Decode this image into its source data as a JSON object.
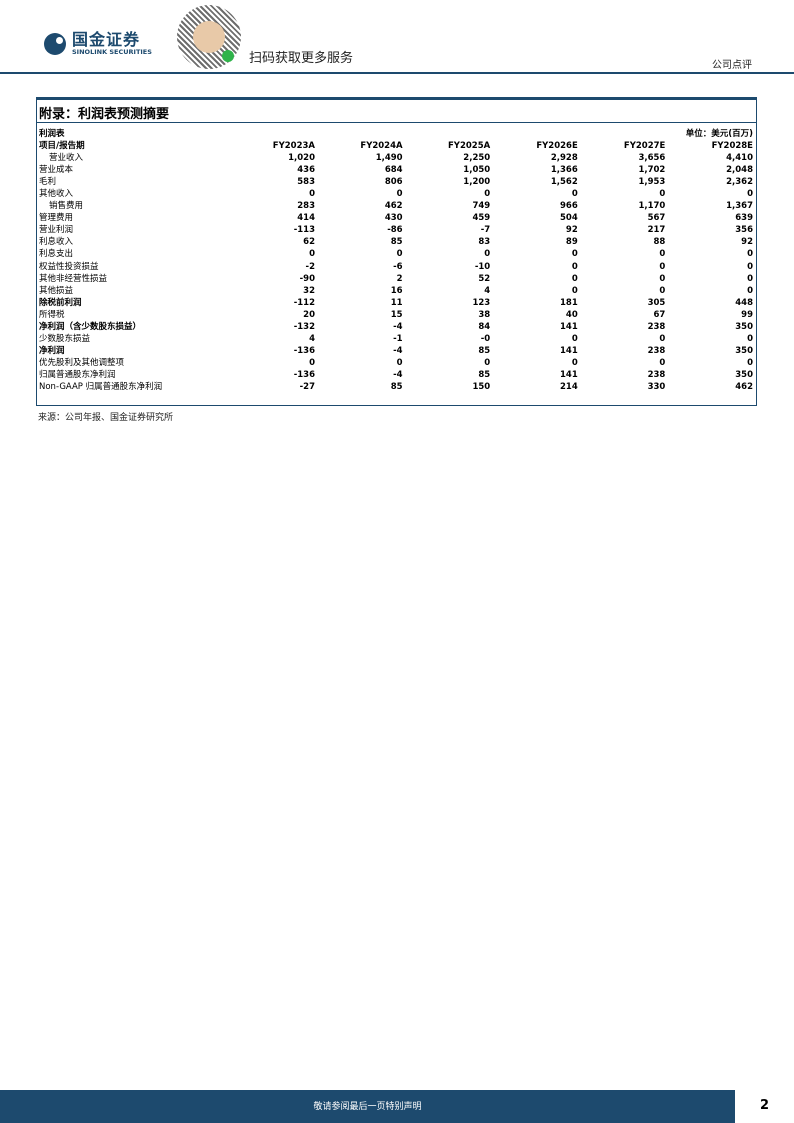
{
  "header": {
    "logo_cn": "国金证券",
    "logo_en": "SINOLINK SECURITIES",
    "scan_text": "扫码获取更多服务",
    "doc_type": "公司点评"
  },
  "section": {
    "title": "附录：利润表预测摘要"
  },
  "table": {
    "name": "利润表",
    "unit": "单位：美元(百万)",
    "header": [
      "项目/报告期",
      "FY2023A",
      "FY2024A",
      "FY2025A",
      "FY2026E",
      "FY2027E",
      "FY2028E"
    ],
    "rows": [
      {
        "label": "营业收入",
        "values": [
          "1,020",
          "1,490",
          "2,250",
          "2,928",
          "3,656",
          "4,410"
        ]
      },
      {
        "label": "营业成本",
        "values": [
          "436",
          "684",
          "1,050",
          "1,366",
          "1,702",
          "2,048"
        ]
      },
      {
        "label": "毛利",
        "values": [
          "583",
          "806",
          "1,200",
          "1,562",
          "1,953",
          "2,362"
        ]
      },
      {
        "label": "其他收入",
        "values": [
          "0",
          "0",
          "0",
          "0",
          "0",
          "0"
        ]
      },
      {
        "label": "销售费用",
        "values": [
          "283",
          "462",
          "749",
          "966",
          "1,170",
          "1,367"
        ]
      },
      {
        "label": "管理费用",
        "values": [
          "414",
          "430",
          "459",
          "504",
          "567",
          "639"
        ]
      },
      {
        "label": "营业利润",
        "values": [
          "-113",
          "-86",
          "-7",
          "92",
          "217",
          "356"
        ]
      },
      {
        "label": "利息收入",
        "values": [
          "62",
          "85",
          "83",
          "89",
          "88",
          "92"
        ]
      },
      {
        "label": "利息支出",
        "values": [
          "0",
          "0",
          "0",
          "0",
          "0",
          "0"
        ]
      },
      {
        "label": "权益性投资损益",
        "values": [
          "-2",
          "-6",
          "-10",
          "0",
          "0",
          "0"
        ]
      },
      {
        "label": "其他非经营性损益",
        "values": [
          "-90",
          "2",
          "52",
          "0",
          "0",
          "0"
        ]
      },
      {
        "label": "其他损益",
        "values": [
          "32",
          "16",
          "4",
          "0",
          "0",
          "0"
        ]
      },
      {
        "label": "除税前利润",
        "values": [
          "-112",
          "11",
          "123",
          "181",
          "305",
          "448"
        ]
      },
      {
        "label": "所得税",
        "values": [
          "20",
          "15",
          "38",
          "40",
          "67",
          "99"
        ]
      },
      {
        "label": "净利润（含少数股东损益）",
        "values": [
          "-132",
          "-4",
          "84",
          "141",
          "238",
          "350"
        ]
      },
      {
        "label": "少数股东损益",
        "values": [
          "4",
          "-1",
          "-0",
          "0",
          "0",
          "0"
        ]
      },
      {
        "label": "净利润",
        "values": [
          "-136",
          "-4",
          "85",
          "141",
          "238",
          "350"
        ]
      },
      {
        "label": "优先股利及其他调整项",
        "values": [
          "0",
          "0",
          "0",
          "0",
          "0",
          "0"
        ]
      },
      {
        "label": "归属普通股东净利润",
        "values": [
          "-136",
          "-4",
          "85",
          "141",
          "238",
          "350"
        ]
      },
      {
        "label": "Non-GAAP 归属普通股东净利润",
        "values": [
          "-27",
          "85",
          "150",
          "214",
          "330",
          "462"
        ]
      }
    ]
  },
  "source": "来源：公司年报、国金证券研究所",
  "footer": {
    "disclaimer": "敬请参阅最后一页特别声明",
    "page": "2"
  }
}
